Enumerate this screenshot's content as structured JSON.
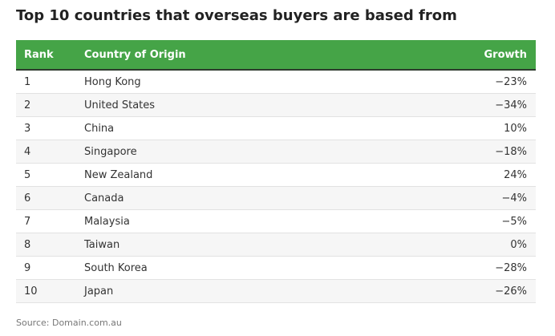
{
  "header": {
    "title": "Top 10 countries that overseas buyers are based from"
  },
  "table": {
    "columns": [
      "Rank",
      "Country of Origin",
      "Growth"
    ],
    "rows": [
      [
        "1",
        "Hong Kong",
        "−23%"
      ],
      [
        "2",
        "United States",
        "−34%"
      ],
      [
        "3",
        "China",
        "10%"
      ],
      [
        "4",
        "Singapore",
        "−18%"
      ],
      [
        "5",
        "New Zealand",
        "24%"
      ],
      [
        "6",
        "Canada",
        "−4%"
      ],
      [
        "7",
        "Malaysia",
        "−5%"
      ],
      [
        "8",
        "Taiwan",
        "0%"
      ],
      [
        "9",
        "South Korea",
        "−28%"
      ],
      [
        "10",
        "Japan",
        "−26%"
      ]
    ]
  },
  "footer": {
    "source": "Source: Domain.com.au"
  }
}
